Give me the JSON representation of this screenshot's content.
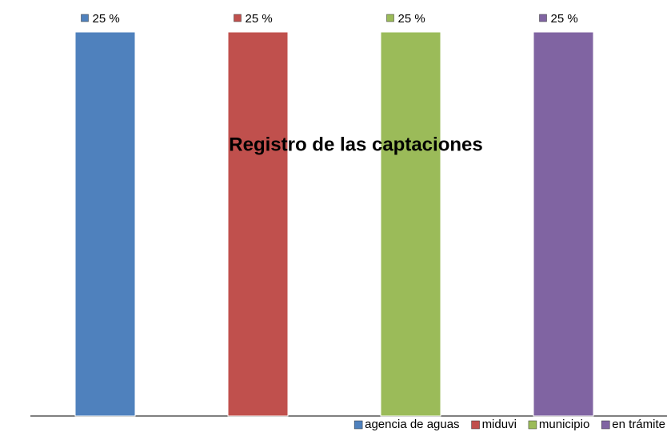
{
  "chart_data": {
    "type": "bar",
    "title": "Registro de las captaciones",
    "categories": [
      null
    ],
    "series": [
      {
        "name": "agencia de aguas",
        "color": "#4f81bd",
        "values": [
          25
        ],
        "value_labels": [
          "25 %"
        ]
      },
      {
        "name": "miduvi",
        "color": "#c0504d",
        "values": [
          25
        ],
        "value_labels": [
          "25 %"
        ]
      },
      {
        "name": "municipio",
        "color": "#9bbb59",
        "values": [
          25
        ],
        "value_labels": [
          "25 %"
        ]
      },
      {
        "name": "en trámite",
        "color": "#8064a2",
        "values": [
          25
        ],
        "value_labels": [
          "25 %"
        ]
      }
    ],
    "ylim": [
      0,
      25
    ],
    "legend": "bottom-right"
  }
}
